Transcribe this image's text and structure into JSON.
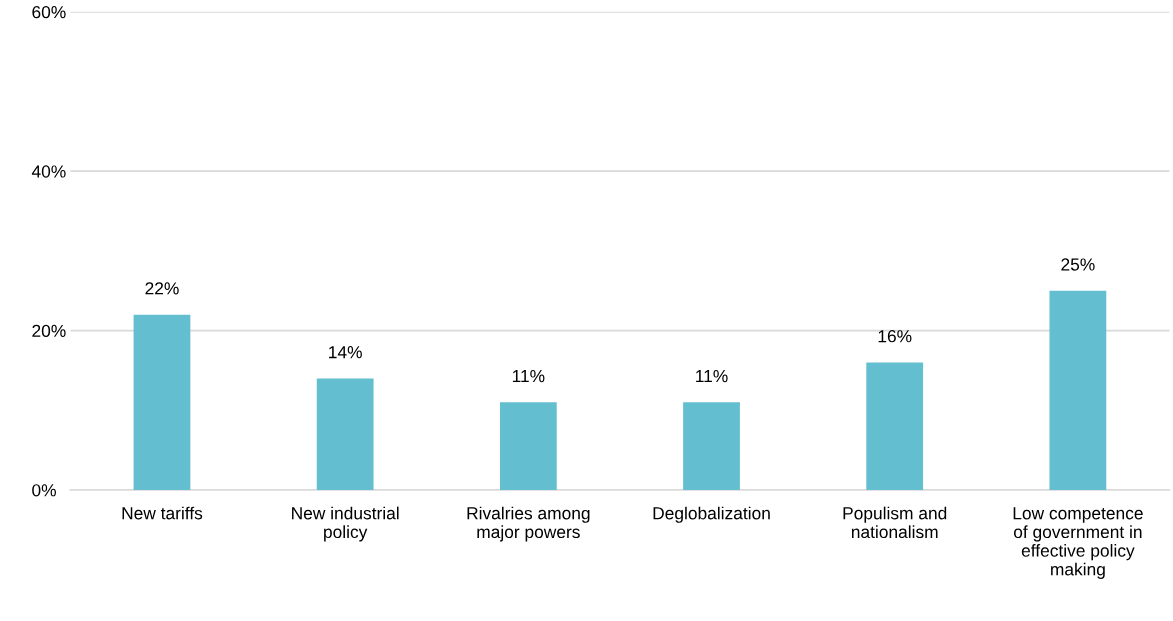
{
  "chart_data": {
    "type": "bar",
    "categories": [
      "New tariffs",
      "New industrial\npolicy",
      "Rivalries among\nmajor powers",
      "Deglobalization",
      "Populism and\nnationalism",
      "Low competence\nof government in\neffective policy\nmaking"
    ],
    "values": [
      22,
      14,
      11,
      11,
      16,
      25
    ],
    "value_labels": [
      "22%",
      "14%",
      "11%",
      "11%",
      "16%",
      "25%"
    ],
    "color": "#63bfcf",
    "ylim": [
      0,
      60
    ],
    "yticks": [
      {
        "value": 0,
        "label": "0%"
      },
      {
        "value": 20,
        "label": "20%"
      },
      {
        "value": 40,
        "label": "40%"
      },
      {
        "value": 60,
        "label": "60%"
      }
    ],
    "grid": "y",
    "legend": false
  }
}
